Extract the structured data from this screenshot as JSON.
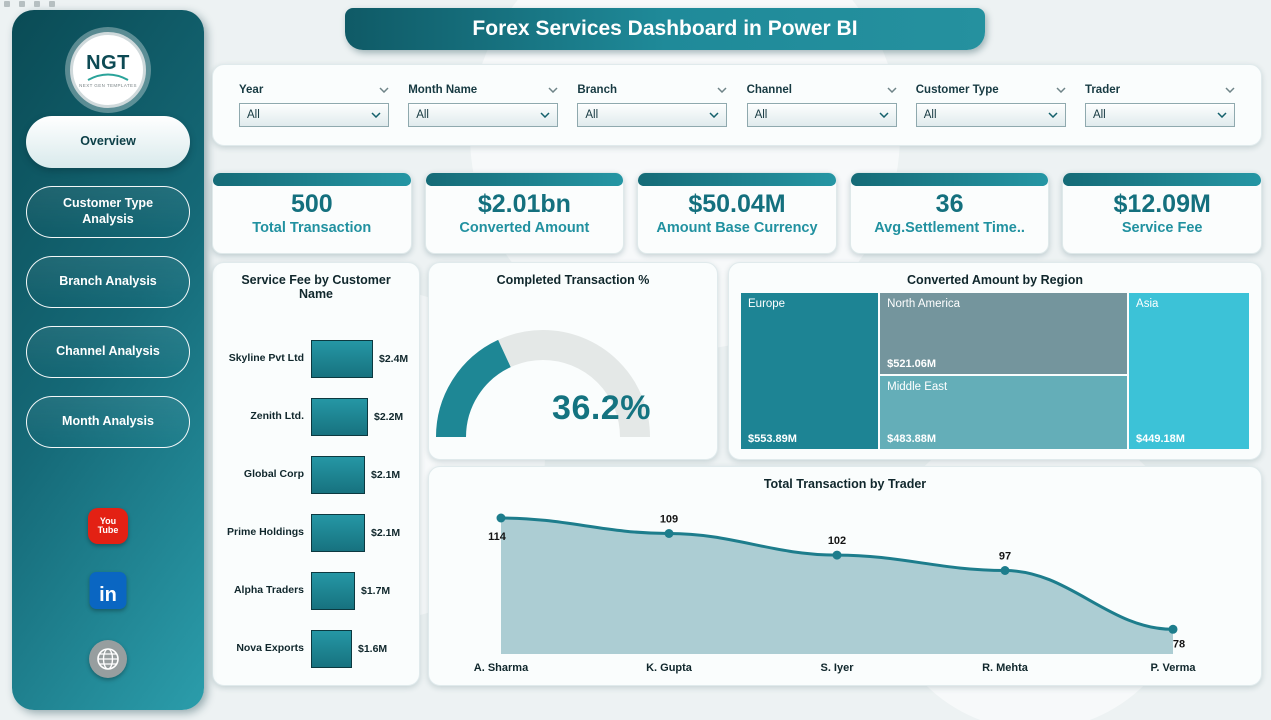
{
  "colors": {
    "accent": "#1f8a99",
    "accent_dark": "#0e4d57",
    "sidebar_gradient_start": "#0a4b55",
    "sidebar_gradient_end": "#2b9dab",
    "card_bg": "#fafdfd"
  },
  "header": {
    "title": "Forex Services Dashboard in Power BI"
  },
  "logo": {
    "brand": "NGT",
    "tagline": "NEXT GEN TEMPLATES"
  },
  "sidebar": {
    "nav": [
      {
        "label": "Overview",
        "active": true
      },
      {
        "label": "Customer Type Analysis",
        "active": false
      },
      {
        "label": "Branch Analysis",
        "active": false
      },
      {
        "label": "Channel Analysis",
        "active": false
      },
      {
        "label": "Month Analysis",
        "active": false
      }
    ],
    "social": [
      {
        "name": "youtube",
        "lines": [
          "You",
          "Tube"
        ],
        "color": "#e32114"
      },
      {
        "name": "linkedin",
        "text": "in",
        "color": "#0a66c2"
      },
      {
        "name": "website",
        "color": "#979e9f"
      }
    ]
  },
  "filters": [
    {
      "label": "Year",
      "value": "All"
    },
    {
      "label": "Month Name",
      "value": "All"
    },
    {
      "label": "Branch",
      "value": "All"
    },
    {
      "label": "Channel",
      "value": "All"
    },
    {
      "label": "Customer Type",
      "value": "All"
    },
    {
      "label": "Trader",
      "value": "All"
    }
  ],
  "kpis": [
    {
      "value": "500",
      "label": "Total Transaction"
    },
    {
      "value": "$2.01bn",
      "label": "Converted Amount"
    },
    {
      "value": "$50.04M",
      "label": "Amount Base Currency"
    },
    {
      "value": "36",
      "label": "Avg.Settlement Time.."
    },
    {
      "value": "$12.09M",
      "label": "Service Fee"
    }
  ],
  "chart_data": [
    {
      "type": "bar",
      "title": "Service Fee by Customer Name",
      "orientation": "horizontal",
      "categories": [
        "Skyline Pvt Ltd",
        "Zenith Ltd.",
        "Global Corp",
        "Prime Holdings",
        "Alpha Traders",
        "Nova Exports"
      ],
      "values": [
        2.4,
        2.2,
        2.1,
        2.1,
        1.7,
        1.6
      ],
      "labels": [
        "$2.4M",
        "$2.2M",
        "$2.1M",
        "$2.1M",
        "$1.7M",
        "$1.6M"
      ],
      "unit": "USD millions",
      "bar_color": "#1f8a99"
    },
    {
      "type": "gauge",
      "title": "Completed Transaction %",
      "value": 36.2,
      "min": 0,
      "max": 100,
      "display": "36.2%"
    },
    {
      "type": "treemap",
      "title": "Converted Amount by Region",
      "items": [
        {
          "name": "Europe",
          "value": 553.89,
          "label": "$553.89M",
          "color": "#1d8494"
        },
        {
          "name": "North America",
          "value": 521.06,
          "label": "$521.06M",
          "color": "#74959d"
        },
        {
          "name": "Middle East",
          "value": 483.88,
          "label": "$483.88M",
          "color": "#64aeb8"
        },
        {
          "name": "Asia",
          "value": 449.18,
          "label": "$449.18M",
          "color": "#3cc2d7"
        }
      ]
    },
    {
      "type": "area",
      "title": "Total Transaction by Trader",
      "categories": [
        "A. Sharma",
        "K. Gupta",
        "S. Iyer",
        "R. Mehta",
        "P. Verma"
      ],
      "values": [
        114,
        109,
        102,
        97,
        78
      ],
      "labels": [
        "114",
        "109",
        "102",
        "97",
        "78"
      ],
      "line_color": "#1d7d8c"
    }
  ]
}
